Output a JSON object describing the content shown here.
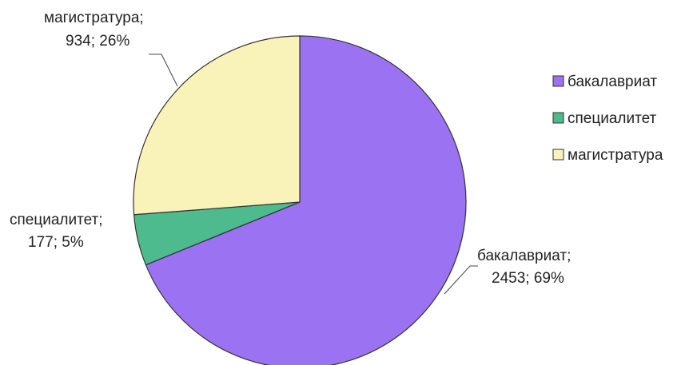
{
  "chart_data": {
    "type": "pie",
    "categories": [
      "бакалавриат",
      "специалитет",
      "магистратура"
    ],
    "values": [
      2453,
      177,
      934
    ],
    "percents": [
      "69%",
      "5%",
      "26%"
    ],
    "colors": [
      "#9b72f2",
      "#4dbb8d",
      "#f9f3b9"
    ],
    "labels": [
      {
        "line1": "бакалавриат;",
        "line2": "2453; 69%"
      },
      {
        "line1": "специалитет;",
        "line2": "177; 5%"
      },
      {
        "line1": "магистратура;",
        "line2": "934; 26%"
      }
    ],
    "legend": {
      "position": "right",
      "entries": [
        "бакалавриат",
        "специалитет",
        "магистратура"
      ]
    },
    "start_angle": "12 o'clock",
    "direction": "clockwise"
  }
}
